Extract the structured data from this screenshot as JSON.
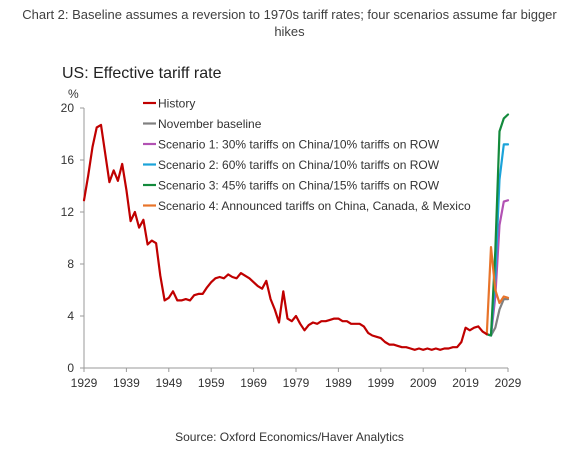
{
  "chart_data": {
    "type": "line",
    "title": "Chart 2: Baseline assumes a reversion to 1970s tariff rates; four scenarios assume far bigger hikes",
    "subtitle": "US: Effective tariff rate",
    "ylabel": "%",
    "xlabel": "",
    "source": "Source: Oxford Economics/Haver Analytics",
    "xlim": [
      1929,
      2029
    ],
    "ylim": [
      0,
      20
    ],
    "x_ticks": [
      "1929",
      "1939",
      "1949",
      "1959",
      "1969",
      "1979",
      "1989",
      "1999",
      "2009",
      "2019",
      "2029"
    ],
    "y_ticks": [
      "0",
      "4",
      "8",
      "12",
      "16",
      "20"
    ],
    "legend_position": "top-left",
    "grid": false,
    "series": [
      {
        "name": "History",
        "color": "#c00000",
        "points": [
          [
            1929,
            12.9
          ],
          [
            1930,
            14.8
          ],
          [
            1931,
            17.0
          ],
          [
            1932,
            18.5
          ],
          [
            1933,
            18.7
          ],
          [
            1934,
            16.5
          ],
          [
            1935,
            14.3
          ],
          [
            1936,
            15.2
          ],
          [
            1937,
            14.4
          ],
          [
            1938,
            15.7
          ],
          [
            1939,
            13.7
          ],
          [
            1940,
            11.3
          ],
          [
            1941,
            12.0
          ],
          [
            1942,
            10.8
          ],
          [
            1943,
            11.4
          ],
          [
            1944,
            9.5
          ],
          [
            1945,
            9.8
          ],
          [
            1946,
            9.6
          ],
          [
            1947,
            7.1
          ],
          [
            1948,
            5.2
          ],
          [
            1949,
            5.4
          ],
          [
            1950,
            5.9
          ],
          [
            1951,
            5.2
          ],
          [
            1952,
            5.2
          ],
          [
            1953,
            5.3
          ],
          [
            1954,
            5.2
          ],
          [
            1955,
            5.6
          ],
          [
            1956,
            5.7
          ],
          [
            1957,
            5.7
          ],
          [
            1958,
            6.2
          ],
          [
            1959,
            6.6
          ],
          [
            1960,
            6.9
          ],
          [
            1961,
            7.0
          ],
          [
            1962,
            6.9
          ],
          [
            1963,
            7.2
          ],
          [
            1964,
            7.0
          ],
          [
            1965,
            6.9
          ],
          [
            1966,
            7.3
          ],
          [
            1967,
            7.1
          ],
          [
            1968,
            6.9
          ],
          [
            1969,
            6.6
          ],
          [
            1970,
            6.3
          ],
          [
            1971,
            6.1
          ],
          [
            1972,
            6.7
          ],
          [
            1973,
            5.3
          ],
          [
            1974,
            4.5
          ],
          [
            1975,
            3.5
          ],
          [
            1976,
            5.9
          ],
          [
            1977,
            3.8
          ],
          [
            1978,
            3.6
          ],
          [
            1979,
            4.0
          ],
          [
            1980,
            3.4
          ],
          [
            1981,
            2.9
          ],
          [
            1982,
            3.3
          ],
          [
            1983,
            3.5
          ],
          [
            1984,
            3.4
          ],
          [
            1985,
            3.6
          ],
          [
            1986,
            3.6
          ],
          [
            1987,
            3.7
          ],
          [
            1988,
            3.8
          ],
          [
            1989,
            3.8
          ],
          [
            1990,
            3.6
          ],
          [
            1991,
            3.6
          ],
          [
            1992,
            3.4
          ],
          [
            1993,
            3.4
          ],
          [
            1994,
            3.4
          ],
          [
            1995,
            3.2
          ],
          [
            1996,
            2.7
          ],
          [
            1997,
            2.5
          ],
          [
            1998,
            2.4
          ],
          [
            1999,
            2.3
          ],
          [
            2000,
            2.0
          ],
          [
            2001,
            1.8
          ],
          [
            2002,
            1.8
          ],
          [
            2003,
            1.7
          ],
          [
            2004,
            1.6
          ],
          [
            2005,
            1.6
          ],
          [
            2006,
            1.5
          ],
          [
            2007,
            1.4
          ],
          [
            2008,
            1.5
          ],
          [
            2009,
            1.4
          ],
          [
            2010,
            1.5
          ],
          [
            2011,
            1.4
          ],
          [
            2012,
            1.5
          ],
          [
            2013,
            1.4
          ],
          [
            2014,
            1.5
          ],
          [
            2015,
            1.5
          ],
          [
            2016,
            1.6
          ],
          [
            2017,
            1.6
          ],
          [
            2018,
            2.0
          ],
          [
            2019,
            3.1
          ],
          [
            2020,
            2.9
          ],
          [
            2021,
            3.1
          ],
          [
            2022,
            3.2
          ],
          [
            2023,
            2.8
          ],
          [
            2024,
            2.6
          ]
        ]
      },
      {
        "name": "November baseline",
        "color": "#808080",
        "points": [
          [
            2024,
            2.6
          ],
          [
            2025,
            2.5
          ],
          [
            2026,
            3.1
          ],
          [
            2027,
            4.5
          ],
          [
            2028,
            5.3
          ],
          [
            2029,
            5.3
          ]
        ]
      },
      {
        "name": "Scenario 1: 30% tariffs on China/10% tariffs on ROW",
        "color": "#b252b3",
        "points": [
          [
            2024,
            2.6
          ],
          [
            2025,
            2.5
          ],
          [
            2026,
            5.5
          ],
          [
            2027,
            11.0
          ],
          [
            2028,
            12.8
          ],
          [
            2029,
            12.9
          ]
        ]
      },
      {
        "name": "Scenario 2: 60% tariffs on China/10% tariffs on ROW",
        "color": "#1ba3d9",
        "points": [
          [
            2024,
            2.6
          ],
          [
            2025,
            2.5
          ],
          [
            2026,
            7.0
          ],
          [
            2027,
            14.5
          ],
          [
            2028,
            17.2
          ],
          [
            2029,
            17.2
          ]
        ]
      },
      {
        "name": "Scenario 3: 45% tariffs on China/15% tariffs on ROW",
        "color": "#138a3c",
        "points": [
          [
            2024,
            2.6
          ],
          [
            2025,
            2.5
          ],
          [
            2026,
            9.0
          ],
          [
            2027,
            18.2
          ],
          [
            2028,
            19.2
          ],
          [
            2029,
            19.5
          ]
        ]
      },
      {
        "name": "Scenario 4: Announced tariffs on China, Canada, & Mexico",
        "color": "#e8742a",
        "points": [
          [
            2024,
            2.6
          ],
          [
            2025,
            9.3
          ],
          [
            2026,
            6.0
          ],
          [
            2027,
            5.0
          ],
          [
            2028,
            5.5
          ],
          [
            2029,
            5.4
          ]
        ]
      }
    ]
  }
}
